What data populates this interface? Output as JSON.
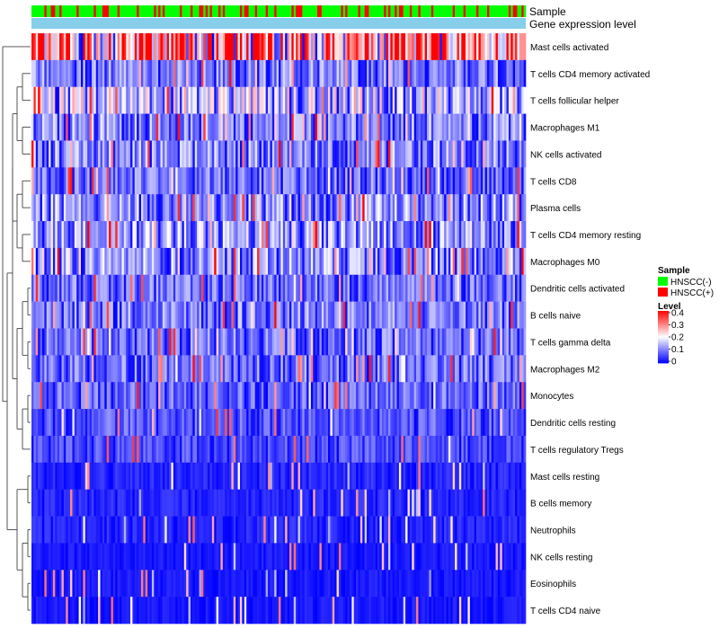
{
  "chart_data": {
    "type": "heatmap",
    "title": "",
    "annotation_tracks": [
      "Sample",
      "Gene expression level"
    ],
    "rows": [
      "Mast cells activated",
      "T cells CD4 memory activated",
      "T cells follicular helper",
      "Macrophages M1",
      "NK cells activated",
      "T cells CD8",
      "Plasma cells",
      "T cells CD4 memory resting",
      "Macrophages M0",
      "Dendritic cells activated",
      "B cells naive",
      "T cells gamma delta",
      "Macrophages M2",
      "Monocytes",
      "Dendritic cells resting",
      "T cells regulatory  Tregs",
      "Mast cells resting",
      "B cells memory",
      "Neutrophils",
      "NK cells resting",
      "Eosinophils",
      "T cells CD4 naive"
    ],
    "row_mean_levels": [
      0.3,
      0.1,
      0.16,
      0.11,
      0.11,
      0.09,
      0.12,
      0.13,
      0.12,
      0.09,
      0.1,
      0.09,
      0.09,
      0.08,
      0.07,
      0.06,
      0.03,
      0.03,
      0.03,
      0.02,
      0.02,
      0.02
    ],
    "n_samples": 230,
    "sample_fraction_positive": 0.25,
    "legend": {
      "sample_title": "Sample",
      "sample_entries": [
        {
          "label": "HNSCC(-)",
          "color": "#00ff00"
        },
        {
          "label": "HNSCC(+)",
          "color": "#ff0000"
        }
      ],
      "level_title": "Level",
      "level_ticks": [
        "0.4",
        "0.3",
        "0.2",
        "0.1",
        "0"
      ],
      "level_range": [
        0,
        0.4
      ]
    },
    "colors": {
      "low": "#0000ff",
      "mid": "#ffffff",
      "high": "#ff0000",
      "expression_track": "#87ceeb"
    }
  }
}
